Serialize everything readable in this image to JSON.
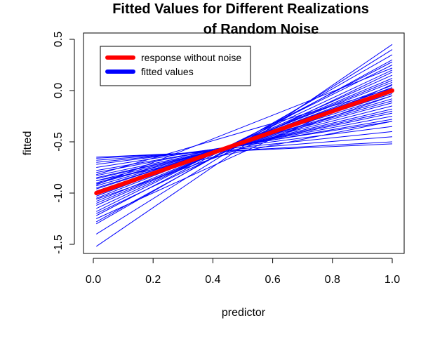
{
  "chart_data": {
    "type": "line",
    "title_lines": [
      "Fitted Values for Different Realizations",
      "of Random Noise"
    ],
    "xlabel": "predictor",
    "ylabel": "fitted",
    "xlim": [
      0.0,
      1.0
    ],
    "ylim": [
      -1.5,
      0.5
    ],
    "xticks": [
      "0.0",
      "0.2",
      "0.4",
      "0.6",
      "0.8",
      "1.0"
    ],
    "yticks": [
      "-1.5",
      "-1.0",
      "-0.5",
      "0.0",
      "0.5"
    ],
    "legend_position": "top-left",
    "legend": [
      {
        "label": "response without noise",
        "color": "#ff0000"
      },
      {
        "label": "fitted values",
        "color": "#0000ff"
      }
    ],
    "true_line": {
      "x": [
        0.01,
        1.0
      ],
      "y": [
        -1.0,
        0.0
      ],
      "color": "#ff0000"
    },
    "fitted_lines": {
      "color": "#0000ff",
      "x": [
        0.01,
        1.0
      ],
      "lines": [
        [
          -1.52,
          0.45
        ],
        [
          -1.4,
          0.4
        ],
        [
          -1.3,
          0.35
        ],
        [
          -1.28,
          0.3
        ],
        [
          -1.22,
          0.28
        ],
        [
          -1.18,
          0.25
        ],
        [
          -1.15,
          0.2
        ],
        [
          -1.12,
          0.15
        ],
        [
          -1.1,
          0.12
        ],
        [
          -1.08,
          0.1
        ],
        [
          -1.05,
          0.08
        ],
        [
          -1.03,
          0.05
        ],
        [
          -1.0,
          0.03
        ],
        [
          -0.98,
          0.0
        ],
        [
          -0.96,
          -0.03
        ],
        [
          -0.95,
          -0.05
        ],
        [
          -0.93,
          -0.08
        ],
        [
          -0.91,
          -0.1
        ],
        [
          -0.9,
          -0.12
        ],
        [
          -0.88,
          -0.15
        ],
        [
          -0.86,
          -0.18
        ],
        [
          -0.85,
          -0.2
        ],
        [
          -0.83,
          -0.22
        ],
        [
          -0.8,
          -0.25
        ],
        [
          -0.78,
          -0.28
        ],
        [
          -0.75,
          -0.3
        ],
        [
          -0.72,
          -0.35
        ],
        [
          -0.7,
          -0.4
        ],
        [
          -0.68,
          -0.45
        ],
        [
          -0.66,
          -0.5
        ],
        [
          -0.65,
          -0.52
        ],
        [
          -1.2,
          0.18
        ],
        [
          -0.92,
          0.22
        ],
        [
          -1.06,
          -0.05
        ],
        [
          -0.82,
          0.02
        ],
        [
          -1.25,
          0.06
        ],
        [
          -0.88,
          -0.3
        ]
      ]
    }
  }
}
